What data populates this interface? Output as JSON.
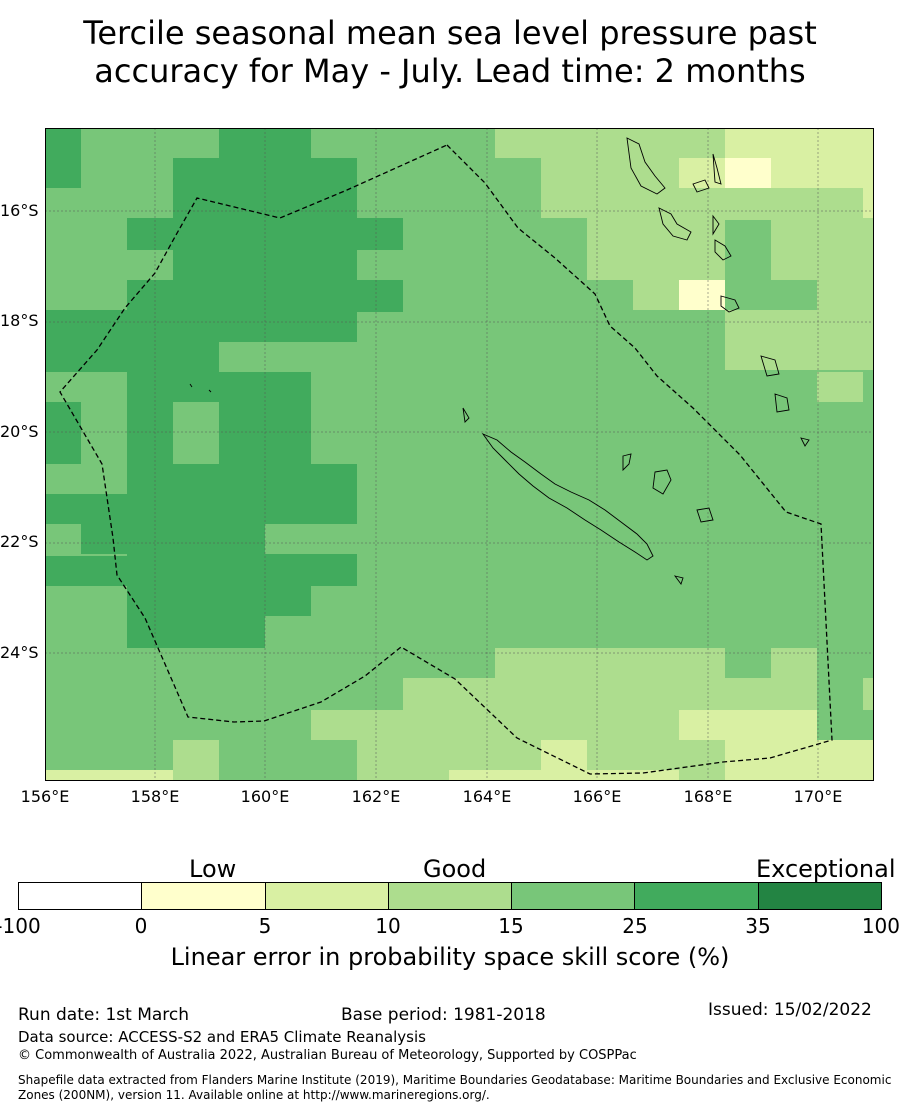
{
  "title": {
    "line1": "Tercile seasonal mean sea level pressure past",
    "line2": "accuracy for May - July. Lead time: 2 months"
  },
  "map": {
    "lat_labels": [
      "16°S",
      "18°S",
      "20°S",
      "22°S",
      "24°S"
    ],
    "lon_labels": [
      "156°E",
      "158°E",
      "160°E",
      "162°E",
      "164°E",
      "166°E",
      "168°E",
      "170°E"
    ],
    "features": [
      "eez-boundary",
      "new-caledonia",
      "vanuatu",
      "loyalty-islands",
      "chesterfield-islands"
    ]
  },
  "colorbar": {
    "categories": [
      "Low",
      "Good",
      "Exceptional"
    ],
    "colors": [
      "#ffffff",
      "#ffffcc",
      "#d9f0a3",
      "#addd8e",
      "#78c679",
      "#41ab5d",
      "#238443"
    ],
    "ticks": [
      "-100",
      "0",
      "5",
      "10",
      "15",
      "25",
      "35",
      "100"
    ],
    "title": "Linear error in probability space skill score (%)"
  },
  "footer": {
    "run_date": "Run date: 1st March",
    "base_period": "Base period: 1981-2018",
    "issued": "Issued: 15/02/2022",
    "data_source": "Data source: ACCESS-S2 and ERA5 Climate Reanalysis",
    "copyright": "© Commonwealth of Australia 2022, Australian Bureau of Meteorology, Supported by COSPPac",
    "shapefile_line1": "Shapefile data extracted from Flanders Marine Institute (2019), Maritime Boundaries Geodatabase: Maritime Boundaries and Exclusive Economic",
    "shapefile_line2": "Zones (200NM), version 11. Available online at http://www.marineregions.org/."
  }
}
